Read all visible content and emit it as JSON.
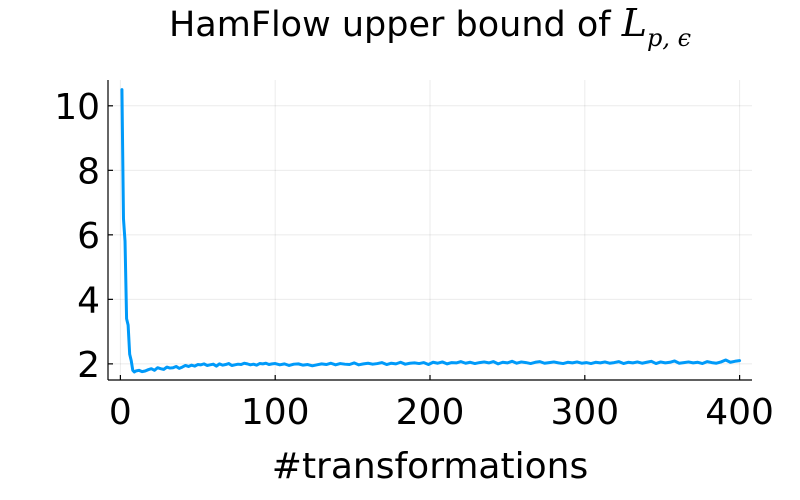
{
  "chart_data": {
    "type": "line",
    "title": "HamFlow upper bound of ",
    "title_math": {
      "base": "L",
      "sub": "p, ϵ"
    },
    "xlabel": "#transformations",
    "ylabel": "",
    "xlim": [
      -8,
      408
    ],
    "ylim": [
      1.5,
      10.8
    ],
    "xticks": [
      0,
      100,
      200,
      300,
      400
    ],
    "yticks": [
      2,
      4,
      6,
      8,
      10
    ],
    "grid": true,
    "legend": "none",
    "line_color": "#009AF9",
    "series": [
      {
        "x": [
          1,
          2,
          3,
          4,
          5,
          6,
          7,
          8,
          9,
          10,
          12,
          14,
          16,
          18,
          20,
          22,
          24,
          26,
          28,
          30,
          32,
          34,
          36,
          38,
          40,
          42,
          44,
          46,
          48,
          50,
          52,
          54,
          56,
          58,
          60,
          62,
          64,
          66,
          68,
          70,
          72,
          74,
          76,
          78,
          80,
          82,
          84,
          86,
          88,
          90,
          92,
          94,
          96,
          98,
          100,
          103,
          106,
          109,
          112,
          115,
          118,
          121,
          124,
          127,
          130,
          133,
          136,
          139,
          142,
          145,
          148,
          151,
          154,
          157,
          160,
          163,
          166,
          169,
          172,
          175,
          178,
          181,
          184,
          187,
          190,
          193,
          196,
          199,
          202,
          205,
          208,
          211,
          214,
          217,
          220,
          223,
          226,
          229,
          232,
          235,
          238,
          241,
          244,
          247,
          250,
          253,
          256,
          259,
          262,
          265,
          268,
          271,
          274,
          277,
          280,
          283,
          286,
          289,
          292,
          295,
          298,
          301,
          304,
          307,
          310,
          313,
          316,
          319,
          322,
          325,
          328,
          331,
          334,
          337,
          340,
          343,
          346,
          349,
          352,
          355,
          358,
          361,
          364,
          367,
          370,
          373,
          376,
          379,
          382,
          385,
          388,
          391,
          394,
          397,
          400
        ],
        "values": [
          10.5,
          6.5,
          5.8,
          3.4,
          3.2,
          2.3,
          2.1,
          1.8,
          1.75,
          1.78,
          1.8,
          1.76,
          1.78,
          1.82,
          1.85,
          1.8,
          1.88,
          1.85,
          1.83,
          1.9,
          1.87,
          1.88,
          1.92,
          1.86,
          1.9,
          1.95,
          1.92,
          1.96,
          1.93,
          1.98,
          1.97,
          2.0,
          1.95,
          1.97,
          1.99,
          1.93,
          2.0,
          1.96,
          1.98,
          2.01,
          1.95,
          1.97,
          1.99,
          1.98,
          2.02,
          2.0,
          1.97,
          1.99,
          1.96,
          2.01,
          2.0,
          2.02,
          1.98,
          2.0,
          2.01,
          1.97,
          2.0,
          1.95,
          1.99,
          2.0,
          1.96,
          1.98,
          1.94,
          1.97,
          2.0,
          1.98,
          2.02,
          1.97,
          2.01,
          1.99,
          1.98,
          2.03,
          1.97,
          2.0,
          2.02,
          1.99,
          2.01,
          2.04,
          1.98,
          2.02,
          2.0,
          2.05,
          1.99,
          2.02,
          2.03,
          2.01,
          2.04,
          1.98,
          2.05,
          2.02,
          2.06,
          2.0,
          2.04,
          2.03,
          2.07,
          2.02,
          2.05,
          2.01,
          2.04,
          2.06,
          2.03,
          2.07,
          2.0,
          2.05,
          2.03,
          2.08,
          2.02,
          2.06,
          2.04,
          2.01,
          2.05,
          2.07,
          2.02,
          2.04,
          2.06,
          2.03,
          2.01,
          2.05,
          2.03,
          2.06,
          2.02,
          2.04,
          2.01,
          2.05,
          2.03,
          2.06,
          2.02,
          2.04,
          2.07,
          2.01,
          2.05,
          2.03,
          2.06,
          2.02,
          2.05,
          2.08,
          2.01,
          2.06,
          2.03,
          2.05,
          2.09,
          2.02,
          2.04,
          2.06,
          2.03,
          2.05,
          2.01,
          2.07,
          2.04,
          2.02,
          2.06,
          2.12,
          2.05,
          2.08,
          2.1
        ]
      }
    ]
  }
}
